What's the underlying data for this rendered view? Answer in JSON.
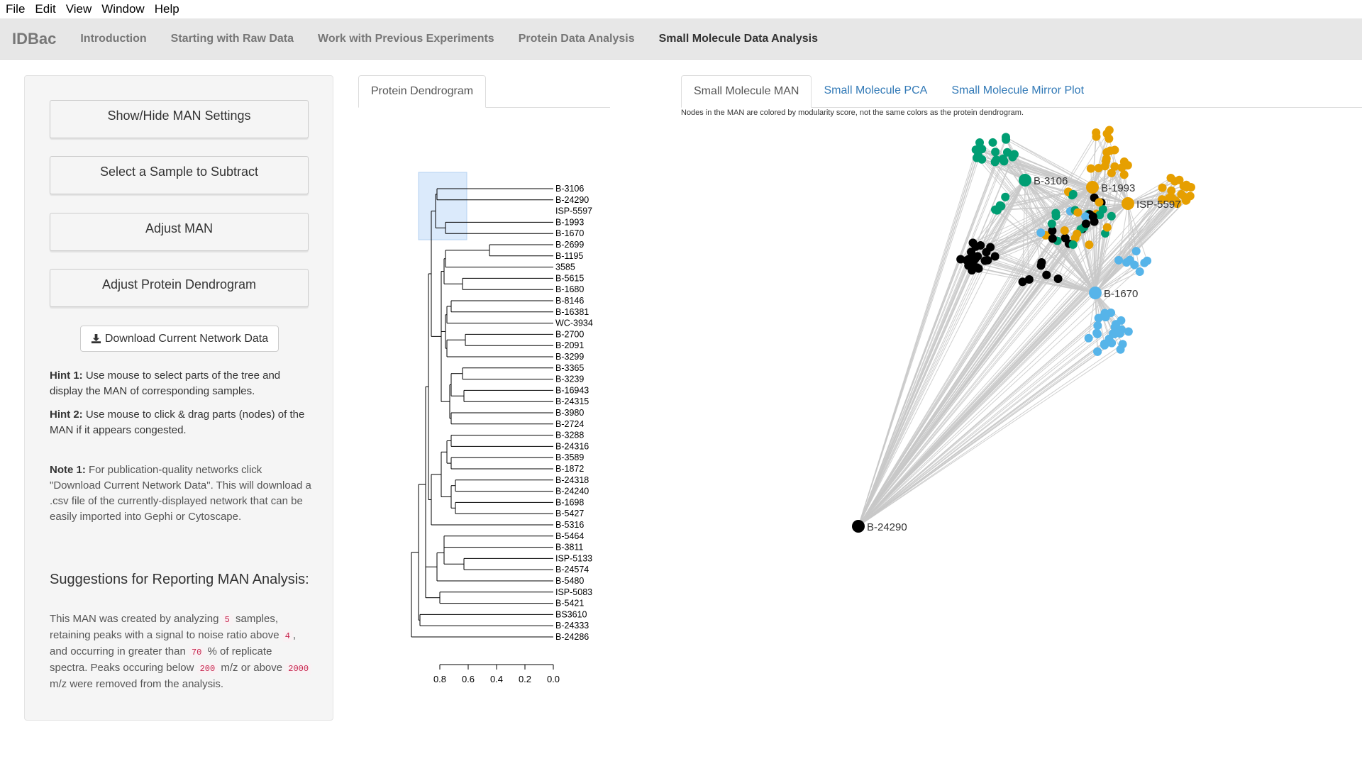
{
  "menubar": {
    "items": [
      "File",
      "Edit",
      "View",
      "Window",
      "Help"
    ]
  },
  "navbar": {
    "brand": "IDBac",
    "items": [
      "Introduction",
      "Starting with Raw Data",
      "Work with Previous Experiments",
      "Protein Data Analysis",
      "Small Molecule Data Analysis"
    ],
    "active": "Small Molecule Data Analysis"
  },
  "sidebar": {
    "buttons": [
      "Show/Hide MAN Settings",
      "Select a Sample to Subtract",
      "Adjust MAN",
      "Adjust Protein Dendrogram"
    ],
    "download_label": "Download Current Network Data",
    "download_icon": "download-icon",
    "hint1_label": "Hint 1:",
    "hint1_text": " Use mouse to select parts of the tree and display the MAN of corresponding samples.",
    "hint2_label": "Hint 2:",
    "hint2_text": " Use mouse to click & drag parts (nodes) of the MAN if it appears congested.",
    "note1_label": "Note 1:",
    "note1_text": " For publication-quality networks click \"Download Current Network Data\". This will download a .csv file of the currently-displayed network that can be easily imported into Gephi or Cytoscape.",
    "suggestions_title": "Suggestions for Reporting MAN Analysis:",
    "suggestions": {
      "t1": "This MAN was created by analyzing ",
      "samples": "5",
      "t2": " samples, retaining peaks with a signal to noise ratio above ",
      "snr": "4",
      "t3": ", and occurring in greater than ",
      "pct": "70",
      "t4": " % of replicate spectra. Peaks occuring below ",
      "low": "200",
      "t5": " m/z or above ",
      "high": "2000",
      "t6": " m/z were removed from the analysis."
    }
  },
  "dendrogram_panel": {
    "tab": "Protein Dendrogram",
    "labels": [
      "B-3106",
      "B-24290",
      "ISP-5597",
      "B-1993",
      "B-1670",
      "B-2699",
      "B-1195",
      "3585",
      "B-5615",
      "B-1680",
      "B-8146",
      "B-16381",
      "WC-3934",
      "B-2700",
      "B-2091",
      "B-3299",
      "B-3365",
      "B-3239",
      "B-16943",
      "B-24315",
      "B-3980",
      "B-2724",
      "B-3288",
      "B-24316",
      "B-3589",
      "B-1872",
      "B-24318",
      "B-24240",
      "B-1698",
      "B-5427",
      "B-5316",
      "B-5464",
      "B-3811",
      "ISP-5133",
      "B-24574",
      "B-5480",
      "ISP-5083",
      "B-5421",
      "BS3610",
      "B-24333",
      "B-24286"
    ],
    "axis_ticks": [
      "0.8",
      "0.6",
      "0.4",
      "0.2",
      "0.0"
    ]
  },
  "network_panel": {
    "tabs": [
      "Small Molecule MAN",
      "Small Molecule PCA",
      "Small Molecule Mirror Plot"
    ],
    "active_tab": "Small Molecule MAN",
    "note": "Nodes in the MAN are colored by modularity score, not the same colors as the protein dendrogram.",
    "sample_nodes": [
      {
        "label": "B-3106",
        "color": "#009e73"
      },
      {
        "label": "B-1993",
        "color": "#e69f00"
      },
      {
        "label": "ISP-5597",
        "color": "#e69f00"
      },
      {
        "label": "B-1670",
        "color": "#56b4e9"
      },
      {
        "label": "B-24290",
        "color": "#000000"
      }
    ],
    "colors": {
      "green": "#009e73",
      "orange": "#e69f00",
      "blue": "#56b4e9",
      "black": "#000000",
      "edge": "#c8c8c8"
    }
  }
}
